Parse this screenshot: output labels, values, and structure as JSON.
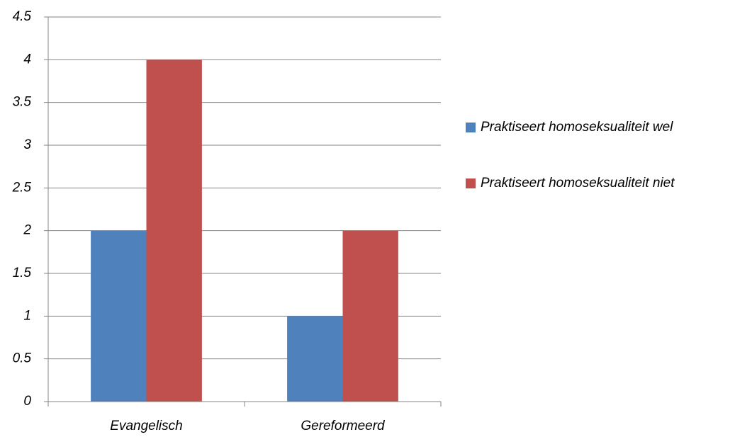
{
  "chart_data": {
    "type": "bar",
    "categories": [
      "Evangelisch",
      "Gereformeerd"
    ],
    "series": [
      {
        "name": "Praktiseert homoseksualiteit wel",
        "color": "#4f81bd",
        "values": [
          2,
          1
        ]
      },
      {
        "name": "Praktiseert homoseksualiteit niet",
        "color": "#c0504d",
        "values": [
          4,
          2
        ]
      }
    ],
    "ylim": [
      0,
      4.5
    ],
    "yticks": [
      0,
      0.5,
      1,
      1.5,
      2,
      2.5,
      3,
      3.5,
      4,
      4.5
    ],
    "grid": true,
    "legend": "right"
  }
}
